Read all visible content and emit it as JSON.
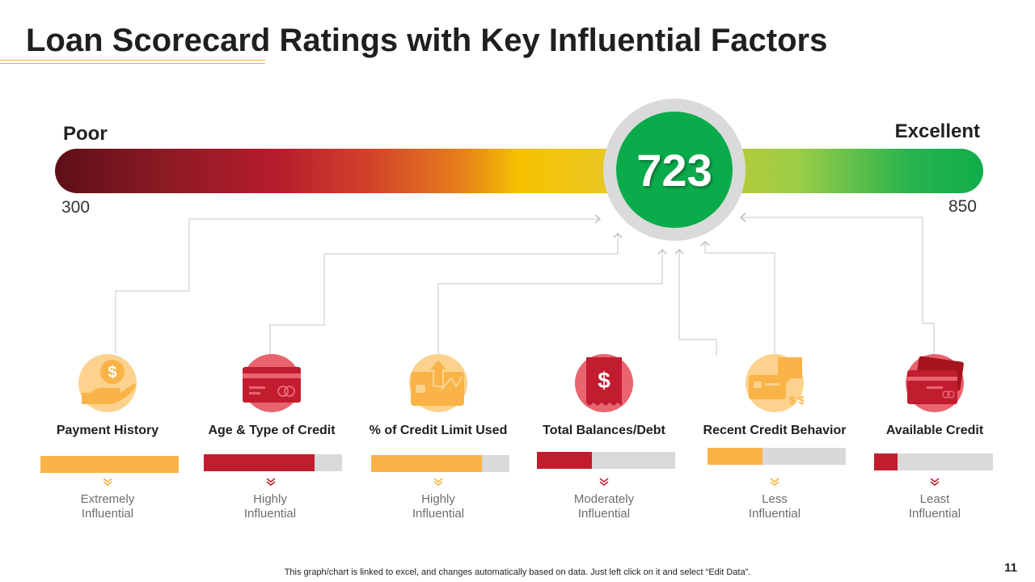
{
  "title": "Loan Scorecard Ratings with Key Influential Factors",
  "gauge": {
    "min_label": "Poor",
    "max_label": "Excellent",
    "min_value": "300",
    "max_value": "850",
    "score": "723"
  },
  "factors": [
    {
      "label": "Payment History",
      "influence_line1": "Extremely",
      "influence_line2": "Influential",
      "fill": 1.0,
      "color": "#f9b347"
    },
    {
      "label": "Age & Type of Credit",
      "influence_line1": "Highly",
      "influence_line2": "Influential",
      "fill": 0.8,
      "color": "#c11d2e"
    },
    {
      "label": "% of Credit Limit Used",
      "influence_line1": "Highly",
      "influence_line2": "Influential",
      "fill": 0.8,
      "color": "#f9b347"
    },
    {
      "label": "Total Balances/Debt",
      "influence_line1": "Moderately",
      "influence_line2": "Influential",
      "fill": 0.4,
      "color": "#c11d2e"
    },
    {
      "label": "Recent Credit Behavior",
      "influence_line1": "Less",
      "influence_line2": "Influential",
      "fill": 0.4,
      "color": "#f9b347"
    },
    {
      "label": "Available Credit",
      "influence_line1": "Least",
      "influence_line2": "Influential",
      "fill": 0.2,
      "color": "#c11d2e"
    }
  ],
  "icons": [
    "dollar-coin-hand-icon",
    "credit-card-icon",
    "credit-limit-card-icon",
    "dollar-receipt-icon",
    "card-payment-icon",
    "wallet-cards-icon"
  ],
  "footnote": "This graph/chart is linked to excel,  and changes automatically based on data. Just left click on it and select “Edit Data”.",
  "page_number": "11"
}
